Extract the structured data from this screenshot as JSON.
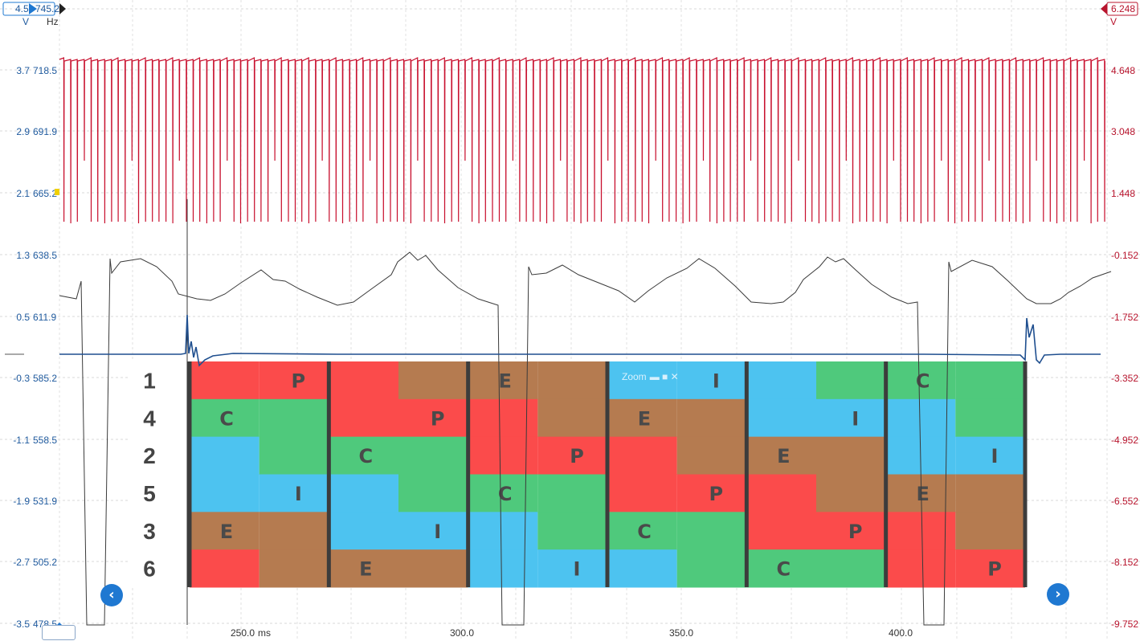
{
  "left_axis": {
    "top_label": "4.5",
    "top_label_hz": "745.2",
    "unit_v": "V",
    "unit_hz": "Hz",
    "ticks": [
      {
        "v": "3.7",
        "hz": "718.5"
      },
      {
        "v": "2.9",
        "hz": "691.9"
      },
      {
        "v": "2.1",
        "hz": "665.2"
      },
      {
        "v": "1.3",
        "hz": "638.5"
      },
      {
        "v": "0.5",
        "hz": "611.9"
      },
      {
        "v": "-0.3",
        "hz": "585.2"
      },
      {
        "v": "-1.1",
        "hz": "558.5"
      },
      {
        "v": "-1.9",
        "hz": "531.9"
      },
      {
        "v": "-2.7",
        "hz": "505.2"
      },
      {
        "v": "-3.5",
        "hz": "478.5"
      }
    ],
    "color": "#1f5a9e"
  },
  "right_axis": {
    "top_label": "6.248",
    "unit": "V",
    "ticks": [
      "4.648",
      "3.048",
      "1.448",
      "-0.152",
      "-1.752",
      "-3.352",
      "-4.952",
      "-6.552",
      "-8.152",
      "-9.752"
    ],
    "color": "#b8142d"
  },
  "time_axis": {
    "labels": [
      "250.0",
      "300.0",
      "350.0",
      "400.0"
    ],
    "unit": "ms"
  },
  "overlay": {
    "row_labels": [
      "1",
      "4",
      "2",
      "5",
      "3",
      "6"
    ],
    "zoom_label": "Zoom",
    "columns": [
      {
        "cells": [
          {
            "color": "#fb4b4b",
            "split": 0.5,
            "right": "#fb4b4b",
            "label": "P"
          },
          {
            "color": "#4fc97c",
            "split": 0.5,
            "right": "#4fc97c",
            "label": "C",
            "label_left": true
          },
          {
            "color": "#4dc3f0",
            "split": 0.5,
            "right": "#4fc97c",
            "label": ""
          },
          {
            "color": "#4dc3f0",
            "split": 0.5,
            "right": "#4dc3f0",
            "label": "I"
          },
          {
            "color": "#b57b50",
            "split": 0.5,
            "right": "#b57b50",
            "label": "E",
            "label_left": true
          },
          {
            "color": "#fb4b4b",
            "split": 0.5,
            "right": "#b57b50",
            "label": ""
          }
        ]
      },
      {
        "cells": [
          {
            "color": "#fb4b4b",
            "split": 0.5,
            "right": "#b57b50",
            "label": ""
          },
          {
            "color": "#fb4b4b",
            "split": 0.5,
            "right": "#fb4b4b",
            "label": "P"
          },
          {
            "color": "#4fc97c",
            "split": 0.5,
            "right": "#4fc97c",
            "label": "C",
            "label_left": true
          },
          {
            "color": "#4dc3f0",
            "split": 0.5,
            "right": "#4fc97c",
            "label": ""
          },
          {
            "color": "#4dc3f0",
            "split": 0.5,
            "right": "#4dc3f0",
            "label": "I"
          },
          {
            "color": "#b57b50",
            "split": 0.5,
            "right": "#b57b50",
            "label": "E",
            "label_left": true
          }
        ]
      },
      {
        "cells": [
          {
            "color": "#b57b50",
            "split": 0.5,
            "right": "#b57b50",
            "label": "E",
            "label_left": true
          },
          {
            "color": "#fb4b4b",
            "split": 0.5,
            "right": "#b57b50",
            "label": ""
          },
          {
            "color": "#fb4b4b",
            "split": 0.5,
            "right": "#fb4b4b",
            "label": "P"
          },
          {
            "color": "#4fc97c",
            "split": 0.5,
            "right": "#4fc97c",
            "label": "C",
            "label_left": true
          },
          {
            "color": "#4dc3f0",
            "split": 0.5,
            "right": "#4fc97c",
            "label": ""
          },
          {
            "color": "#4dc3f0",
            "split": 0.5,
            "right": "#4dc3f0",
            "label": "I"
          }
        ]
      },
      {
        "cells": [
          {
            "color": "#4dc3f0",
            "split": 0.5,
            "right": "#4dc3f0",
            "label": "I"
          },
          {
            "color": "#b57b50",
            "split": 0.5,
            "right": "#b57b50",
            "label": "E",
            "label_left": true
          },
          {
            "color": "#fb4b4b",
            "split": 0.5,
            "right": "#b57b50",
            "label": ""
          },
          {
            "color": "#fb4b4b",
            "split": 0.5,
            "right": "#fb4b4b",
            "label": "P"
          },
          {
            "color": "#4fc97c",
            "split": 0.5,
            "right": "#4fc97c",
            "label": "C",
            "label_left": true
          },
          {
            "color": "#4dc3f0",
            "split": 0.5,
            "right": "#4fc97c",
            "label": ""
          }
        ]
      },
      {
        "cells": [
          {
            "color": "#4dc3f0",
            "split": 0.5,
            "right": "#4fc97c",
            "label": ""
          },
          {
            "color": "#4dc3f0",
            "split": 0.5,
            "right": "#4dc3f0",
            "label": "I"
          },
          {
            "color": "#b57b50",
            "split": 0.5,
            "right": "#b57b50",
            "label": "E",
            "label_left": true
          },
          {
            "color": "#fb4b4b",
            "split": 0.5,
            "right": "#b57b50",
            "label": ""
          },
          {
            "color": "#fb4b4b",
            "split": 0.5,
            "right": "#fb4b4b",
            "label": "P"
          },
          {
            "color": "#4fc97c",
            "split": 0.5,
            "right": "#4fc97c",
            "label": "C",
            "label_left": true
          }
        ]
      },
      {
        "cells": [
          {
            "color": "#4fc97c",
            "split": 0.5,
            "right": "#4fc97c",
            "label": "C",
            "label_left": true
          },
          {
            "color": "#4dc3f0",
            "split": 0.5,
            "right": "#4fc97c",
            "label": ""
          },
          {
            "color": "#4dc3f0",
            "split": 0.5,
            "right": "#4dc3f0",
            "label": "I"
          },
          {
            "color": "#b57b50",
            "split": 0.5,
            "right": "#b57b50",
            "label": "E",
            "label_left": true
          },
          {
            "color": "#fb4b4b",
            "split": 0.5,
            "right": "#b57b50",
            "label": ""
          },
          {
            "color": "#fb4b4b",
            "split": 0.5,
            "right": "#fb4b4b",
            "label": "P"
          }
        ]
      }
    ]
  },
  "nav": {
    "prev_icon": "chevron-left-icon",
    "next_icon": "chevron-right-icon",
    "prev_glyph": "‹",
    "next_glyph": "›"
  },
  "trace_colors": {
    "red": "#c8102e",
    "black": "#3a3a3a",
    "blue": "#1f4f8f"
  }
}
